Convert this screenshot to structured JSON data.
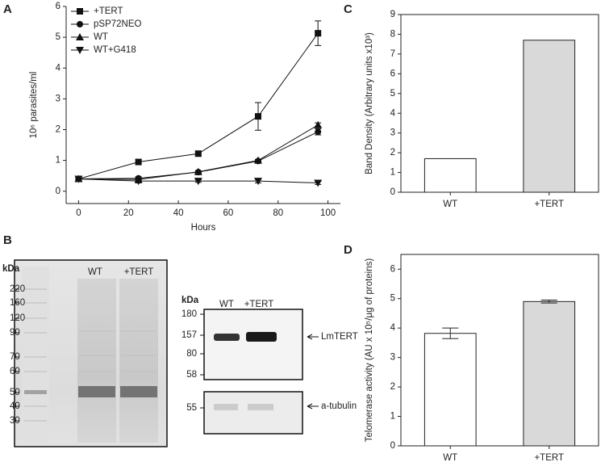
{
  "panel_labels": [
    "A",
    "B",
    "C",
    "D"
  ],
  "chart_data": [
    {
      "type": "line",
      "xlabel": "Hours",
      "ylabel": "10⁶ parasites/ml",
      "x": [
        0,
        24,
        48,
        72,
        96
      ],
      "xlim": [
        -5,
        105
      ],
      "xticks": [
        0,
        20,
        40,
        60,
        80,
        100
      ],
      "ylim": [
        -0.4,
        6
      ],
      "yticks": [
        0,
        1,
        2,
        3,
        4,
        5,
        6
      ],
      "legend": "upper left",
      "series": [
        {
          "name": "+TERT",
          "color": "#111111",
          "marker": "square",
          "values": [
            0.4,
            0.95,
            1.22,
            2.43,
            5.13
          ],
          "errors": [
            0.05,
            0.08,
            0.08,
            0.45,
            0.4
          ]
        },
        {
          "name": "pSP72NEO",
          "color": "#111111",
          "marker": "circle",
          "values": [
            0.4,
            0.42,
            0.62,
            0.98,
            1.93
          ],
          "errors": [
            0.03,
            0.05,
            0.04,
            0.03,
            0.1
          ]
        },
        {
          "name": "WT",
          "color": "#111111",
          "marker": "triangle-up",
          "values": [
            0.4,
            0.38,
            0.63,
            1.0,
            2.15
          ],
          "errors": [
            0.03,
            0.03,
            0.03,
            0.03,
            0.07
          ]
        },
        {
          "name": "WT+G418",
          "color": "#111111",
          "marker": "triangle-down",
          "values": [
            0.4,
            0.33,
            0.33,
            0.33,
            0.27
          ],
          "errors": [
            0.03,
            0.06,
            0.04,
            0.06,
            0.05
          ]
        }
      ]
    },
    {
      "type": "bar",
      "ylabel": "Band Density (Arbitrary units x10³)",
      "categories": [
        "WT",
        "+TERT"
      ],
      "values": [
        1.7,
        7.7
      ],
      "colors": [
        "#ffffff",
        "#d9d9d9"
      ],
      "ylim": [
        0,
        9
      ],
      "yticks": [
        0,
        1,
        2,
        3,
        4,
        5,
        6,
        7,
        8,
        9
      ]
    },
    {
      "type": "bar",
      "ylabel": "Telomerase activity (AU x 10⁵/µg of proteins)",
      "categories": [
        "WT",
        "+TERT"
      ],
      "values": [
        3.82,
        4.9
      ],
      "errors": [
        0.18,
        0.05
      ],
      "colors": [
        "#ffffff",
        "#d9d9d9"
      ],
      "ylim": [
        0,
        6.5
      ],
      "yticks": [
        0,
        1,
        2,
        3,
        4,
        5,
        6
      ]
    }
  ],
  "blot": {
    "gel": {
      "unit": "kDa",
      "lanes": [
        "WT",
        "+TERT"
      ],
      "markers": [
        "220",
        "160",
        "120",
        "90",
        "70",
        "60",
        "50",
        "40",
        "30"
      ]
    },
    "western": {
      "unit": "kDa",
      "lanes": [
        "WT",
        "+TERT"
      ],
      "markers": [
        "180",
        "157",
        "80",
        "58"
      ],
      "target": "LmTERT",
      "control_marker": "55",
      "control": "a-tubulin"
    }
  }
}
